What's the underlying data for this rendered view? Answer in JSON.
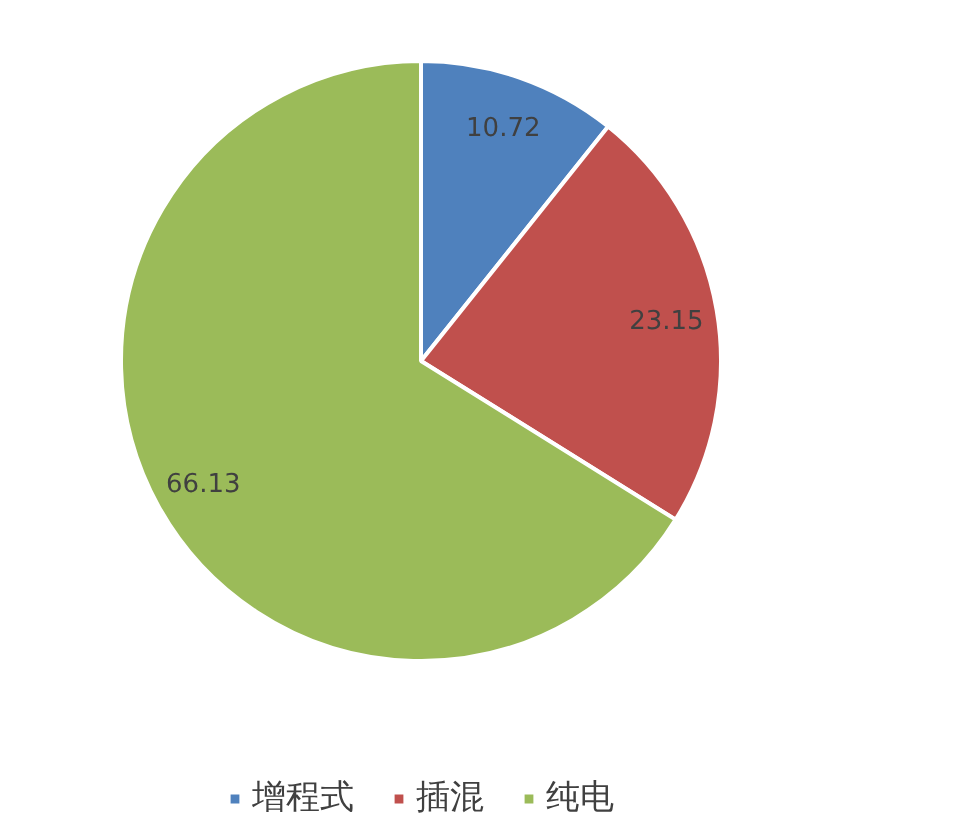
{
  "chart_data": {
    "type": "pie",
    "categories": [
      "增程式",
      "插混",
      "纯电"
    ],
    "values": [
      10.72,
      23.15,
      66.13
    ],
    "colors": [
      "#4f81bd",
      "#c0504d",
      "#9bbb59"
    ],
    "data_labels": true,
    "legend": "bottom"
  }
}
